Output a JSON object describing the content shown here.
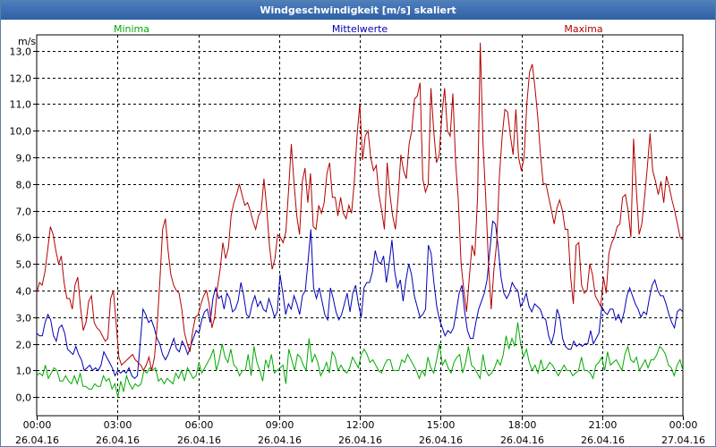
{
  "window": {
    "title": "Windgeschwindigkeit [m/s] skaliert"
  },
  "chart_data": {
    "type": "line",
    "title": "Windgeschwindigkeit [m/s] skaliert",
    "ylabel": "m/s",
    "ylim": [
      -0.7,
      13.6
    ],
    "xlim": [
      0,
      24
    ],
    "yticks": [
      "0,0",
      "1,0",
      "2,0",
      "3,0",
      "4,0",
      "5,0",
      "6,0",
      "7,0",
      "8,0",
      "9,0",
      "10,0",
      "11,0",
      "12,0",
      "13,0"
    ],
    "xticks": [
      {
        "time": "00:00",
        "date": "26.04.16"
      },
      {
        "time": "03:00",
        "date": "26.04.16"
      },
      {
        "time": "06:00",
        "date": "26.04.16"
      },
      {
        "time": "09:00",
        "date": "26.04.16"
      },
      {
        "time": "12:00",
        "date": "26.04.16"
      },
      {
        "time": "15:00",
        "date": "26.04.16"
      },
      {
        "time": "18:00",
        "date": "26.04.16"
      },
      {
        "time": "21:00",
        "date": "26.04.16"
      },
      {
        "time": "00:00",
        "date": "27.04.16"
      }
    ],
    "grid": true,
    "legend_position": "top",
    "series": [
      {
        "name": "Minima",
        "color": "#00aa00",
        "values": [
          0.8,
          0.9,
          0.8,
          1.2,
          0.7,
          0.9,
          1.1,
          1.0,
          0.6,
          0.6,
          0.8,
          0.6,
          0.5,
          0.8,
          0.5,
          0.9,
          0.4,
          0.4,
          0.3,
          0.3,
          0.5,
          0.4,
          0.4,
          0.8,
          0.6,
          0.7,
          0.3,
          0.5,
          0.0,
          0.6,
          0.2,
          0.8,
          0.5,
          0.3,
          0.5,
          0.4,
          0.5,
          1.0,
          0.9,
          1.1,
          1.0,
          1.1,
          0.6,
          0.7,
          0.5,
          0.7,
          0.6,
          0.5,
          0.9,
          0.7,
          1.0,
          0.6,
          1.1,
          0.9,
          0.7,
          0.8,
          1.3,
          0.9,
          1.1,
          1.3,
          1.5,
          1.8,
          1.0,
          1.4,
          2.0,
          1.5,
          1.3,
          1.8,
          1.2,
          1.1,
          0.8,
          1.0,
          1.0,
          1.6,
          0.8,
          1.9,
          1.3,
          1.0,
          0.6,
          1.4,
          1.1,
          1.6,
          0.9,
          1.0,
          1.1,
          1.2,
          0.5,
          1.8,
          1.4,
          1.0,
          1.6,
          1.5,
          1.2,
          1.0,
          2.2,
          1.3,
          1.6,
          1.3,
          0.8,
          1.0,
          1.3,
          0.9,
          1.7,
          1.5,
          1.0,
          1.2,
          1.0,
          0.9,
          1.1,
          1.5,
          1.3,
          1.1,
          1.6,
          1.8,
          1.6,
          1.3,
          1.4,
          1.2,
          1.0,
          0.9,
          1.2,
          1.4,
          1.4,
          1.0,
          1.0,
          1.0,
          1.4,
          1.3,
          1.6,
          1.4,
          1.2,
          1.0,
          0.7,
          1.0,
          0.8,
          1.5,
          1.1,
          0.9,
          1.4,
          2.0,
          1.2,
          1.4,
          1.1,
          0.9,
          1.3,
          1.5,
          1.6,
          0.9,
          1.3,
          1.9,
          1.2,
          1.1,
          0.9,
          0.7,
          1.6,
          1.0,
          0.8,
          0.9,
          1.1,
          1.4,
          1.2,
          1.6,
          2.3,
          1.8,
          2.2,
          1.9,
          2.8,
          2.0,
          1.5,
          1.8,
          1.3,
          1.0,
          1.2,
          0.9,
          1.4,
          1.0,
          1.1,
          1.3,
          1.2,
          1.0,
          0.8,
          1.0,
          1.2,
          1.0,
          1.0,
          0.8,
          0.9,
          1.0,
          1.5,
          1.0,
          1.0,
          0.9,
          0.7,
          1.2,
          1.3,
          1.5,
          1.0,
          1.7,
          1.2,
          1.3,
          1.4,
          1.2,
          1.0,
          1.6,
          1.9,
          1.4,
          1.3,
          1.5,
          1.0,
          1.2,
          1.4,
          1.1,
          1.4,
          1.4,
          1.6,
          1.9,
          1.8,
          1.6,
          1.2,
          1.1,
          0.8,
          1.2,
          1.4,
          1.0
        ]
      },
      {
        "name": "Mittelwerte",
        "color": "#0000b4",
        "values": [
          2.4,
          2.3,
          2.3,
          2.8,
          3.1,
          2.9,
          2.3,
          2.1,
          2.6,
          2.7,
          2.4,
          1.8,
          1.7,
          1.6,
          1.9,
          1.6,
          1.4,
          1.0,
          1.1,
          1.2,
          1.0,
          1.1,
          1.0,
          1.2,
          1.7,
          1.5,
          1.3,
          1.1,
          0.8,
          1.0,
          0.9,
          1.0,
          0.9,
          1.1,
          0.8,
          0.7,
          0.8,
          2.0,
          3.3,
          3.1,
          2.8,
          2.9,
          2.6,
          2.2,
          2.0,
          1.6,
          1.4,
          1.6,
          1.9,
          2.2,
          1.8,
          1.7,
          2.1,
          1.9,
          1.6,
          1.9,
          2.2,
          2.5,
          2.4,
          2.9,
          3.2,
          3.3,
          2.8,
          3.7,
          4.1,
          3.7,
          3.8,
          3.3,
          3.9,
          3.7,
          3.2,
          3.3,
          3.6,
          4.3,
          3.8,
          3.1,
          3.0,
          3.5,
          3.8,
          3.4,
          3.6,
          3.3,
          3.2,
          3.7,
          3.4,
          3.0,
          3.2,
          4.6,
          3.9,
          3.1,
          3.5,
          3.3,
          3.8,
          3.5,
          3.1,
          3.8,
          4.0,
          5.1,
          6.3,
          4.1,
          3.7,
          4.1,
          3.6,
          3.1,
          2.9,
          4.1,
          3.7,
          3.2,
          2.9,
          3.1,
          3.5,
          3.9,
          3.2,
          3.9,
          4.2,
          3.5,
          3.0,
          4.1,
          4.3,
          4.3,
          4.7,
          5.5,
          5.1,
          5.0,
          5.3,
          4.3,
          5.0,
          5.9,
          4.7,
          4.1,
          4.4,
          3.6,
          4.4,
          5.0,
          4.6,
          3.8,
          3.4,
          3.0,
          3.1,
          3.3,
          5.7,
          5.4,
          4.3,
          3.4,
          2.9,
          2.6,
          2.3,
          2.5,
          2.4,
          2.6,
          3.2,
          3.9,
          4.2,
          3.2,
          2.5,
          2.2,
          2.2,
          2.8,
          3.3,
          3.6,
          3.9,
          4.4,
          5.5,
          6.6,
          6.5,
          5.6,
          4.5,
          3.9,
          3.7,
          3.9,
          4.3,
          4.1,
          4.0,
          3.4,
          3.6,
          3.9,
          3.4,
          3.2,
          3.5,
          3.4,
          3.3,
          3.0,
          2.9,
          2.3,
          2.0,
          2.4,
          3.3,
          3.0,
          2.2,
          1.9,
          1.8,
          1.8,
          2.1,
          1.9,
          2.0,
          1.9,
          2.0,
          2.0,
          2.5,
          2.0,
          2.2,
          2.4,
          3.4,
          3.2,
          3.1,
          3.3,
          3.3,
          2.9,
          3.1,
          2.8,
          3.2,
          3.8,
          4.1,
          3.8,
          3.5,
          3.3,
          3.0,
          3.2,
          3.1,
          3.7,
          4.2,
          4.4,
          4.0,
          3.8,
          3.8,
          3.5,
          3.1,
          2.8,
          2.6,
          3.2,
          3.3,
          3.2
        ]
      },
      {
        "name": "Maxima",
        "color": "#b40000",
        "values": [
          3.9,
          4.3,
          4.2,
          4.7,
          5.5,
          6.4,
          6.1,
          5.5,
          5.0,
          5.3,
          4.3,
          3.7,
          3.7,
          3.3,
          4.2,
          4.5,
          3.4,
          2.5,
          2.8,
          3.6,
          3.8,
          2.8,
          2.6,
          2.5,
          2.3,
          2.1,
          2.2,
          3.7,
          4.0,
          2.8,
          1.5,
          1.2,
          1.3,
          1.4,
          1.5,
          1.6,
          1.4,
          1.3,
          1.2,
          1.0,
          1.2,
          1.5,
          1.0,
          1.5,
          2.7,
          4.4,
          6.3,
          6.7,
          5.5,
          4.6,
          4.2,
          4.0,
          3.9,
          3.3,
          2.4,
          2.0,
          1.7,
          2.5,
          3.0,
          3.1,
          3.5,
          3.8,
          4.0,
          3.5,
          2.6,
          3.0,
          4.1,
          4.8,
          5.8,
          5.2,
          5.6,
          6.8,
          7.3,
          7.6,
          8.0,
          7.6,
          7.2,
          7.3,
          7.0,
          6.6,
          6.3,
          6.8,
          7.0,
          8.2,
          7.1,
          5.7,
          4.8,
          5.2,
          6.1,
          6.0,
          5.8,
          6.2,
          7.8,
          9.5,
          8.0,
          6.8,
          6.1,
          8.1,
          8.6,
          7.3,
          8.4,
          6.4,
          6.3,
          7.2,
          6.9,
          7.3,
          8.4,
          8.8,
          7.5,
          7.5,
          6.8,
          7.5,
          6.9,
          6.7,
          7.2,
          6.9,
          8.1,
          9.8,
          11.0,
          8.9,
          9.8,
          10.0,
          9.0,
          8.5,
          8.7,
          7.6,
          7.0,
          6.3,
          8.8,
          7.6,
          6.8,
          6.3,
          7.5,
          9.1,
          8.5,
          8.2,
          9.5,
          10.0,
          11.2,
          11.3,
          11.8,
          8.2,
          7.7,
          8.0,
          11.6,
          10.0,
          8.8,
          9.1,
          10.6,
          11.6,
          10.0,
          9.8,
          11.4,
          8.8,
          7.4,
          5.0,
          4.0,
          3.2,
          4.5,
          5.7,
          5.3,
          7.5,
          13.3,
          9.5,
          7.5,
          5.0,
          3.3,
          4.8,
          5.8,
          8.3,
          9.8,
          10.8,
          10.7,
          9.8,
          9.1,
          10.8,
          9.0,
          8.5,
          9.0,
          11.0,
          12.2,
          12.5,
          11.6,
          10.5,
          9.1,
          8.0,
          8.0,
          7.5,
          7.0,
          6.5,
          7.1,
          7.4,
          7.0,
          6.3,
          6.3,
          4.5,
          3.5,
          5.7,
          5.8,
          4.2,
          3.9,
          4.0,
          5.0,
          4.6,
          3.8,
          3.6,
          3.4,
          4.5,
          3.9,
          5.4,
          5.8,
          6.0,
          6.4,
          6.5,
          7.5,
          7.6,
          7.0,
          6.0,
          9.7,
          7.8,
          6.1,
          6.5,
          7.5,
          8.6,
          9.9,
          8.5,
          8.1,
          7.6,
          8.1,
          7.3,
          8.3,
          7.9,
          7.4,
          7.0,
          6.5,
          6.0,
          5.9
        ]
      }
    ]
  }
}
